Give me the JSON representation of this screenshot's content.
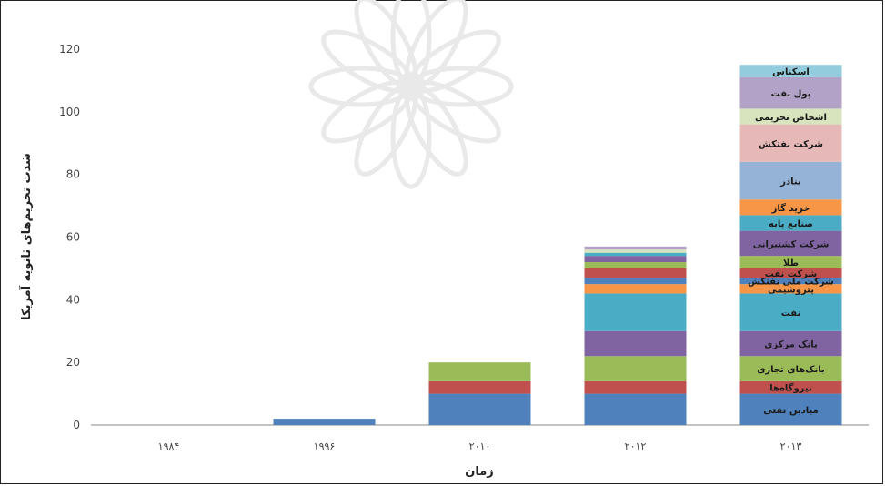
{
  "chart_data": {
    "type": "bar",
    "stacked": true,
    "title": "",
    "xlabel": "زمان",
    "ylabel": "شدت تحریم‌های ثانویه آمریکا",
    "ylim": [
      0,
      120
    ],
    "yticks": [
      0,
      20,
      40,
      60,
      80,
      100,
      120
    ],
    "grid": false,
    "legend": "none",
    "categories": [
      "۱۹۸۴",
      "۱۹۹۶",
      "۲۰۱۰",
      "۲۰۱۲",
      "۲۰۱۳"
    ],
    "series": [
      {
        "name": "میادین نفتی",
        "color": "#4f81bd",
        "values": [
          0,
          2,
          10,
          10,
          10
        ]
      },
      {
        "name": "نیروگاه‌ها",
        "color": "#c0504d",
        "values": [
          0,
          0,
          4,
          4,
          4
        ]
      },
      {
        "name": "بانک‌های تجاری",
        "color": "#9bbb59",
        "values": [
          0,
          0,
          6,
          8,
          8
        ]
      },
      {
        "name": "بانک مرکزی",
        "color": "#8064a2",
        "values": [
          0,
          0,
          0,
          8,
          8
        ]
      },
      {
        "name": "نفت",
        "color": "#4bacc6",
        "values": [
          0,
          0,
          0,
          12,
          12
        ]
      },
      {
        "name": "پتروشیمی",
        "color": "#f79646",
        "values": [
          0,
          0,
          0,
          3,
          3
        ]
      },
      {
        "name": "شرکت ملی نفتکش",
        "color": "#4f81bd",
        "values": [
          0,
          0,
          0,
          2,
          2
        ]
      },
      {
        "name": "شرکت نفت",
        "color": "#c0504d",
        "values": [
          0,
          0,
          0,
          3,
          3
        ]
      },
      {
        "name": "طلا",
        "color": "#9bbb59",
        "values": [
          0,
          0,
          0,
          2,
          4
        ]
      },
      {
        "name": "شرکت کشتیرانی",
        "color": "#8064a2",
        "values": [
          0,
          0,
          0,
          2,
          8
        ]
      },
      {
        "name": "صنایع پایه",
        "color": "#4bacc6",
        "values": [
          0,
          0,
          0,
          1,
          5
        ]
      },
      {
        "name": "خرید گاز",
        "color": "#f79646",
        "values": [
          0,
          0,
          0,
          0,
          5
        ]
      },
      {
        "name": "بنادر",
        "color": "#95b3d7",
        "values": [
          0,
          0,
          0,
          0,
          12
        ]
      },
      {
        "name": "شرکت نفتکش",
        "color": "#e6b9b8",
        "values": [
          0,
          0,
          0,
          0,
          12
        ]
      },
      {
        "name": "اشخاص تحریمی",
        "color": "#d7e4bd",
        "values": [
          0,
          0,
          0,
          1,
          5
        ]
      },
      {
        "name": "پول نفت",
        "color": "#b3a2c7",
        "values": [
          0,
          0,
          0,
          1,
          10
        ]
      },
      {
        "name": "اسکناس",
        "color": "#93cddd",
        "values": [
          0,
          0,
          0,
          0,
          4
        ]
      }
    ]
  }
}
